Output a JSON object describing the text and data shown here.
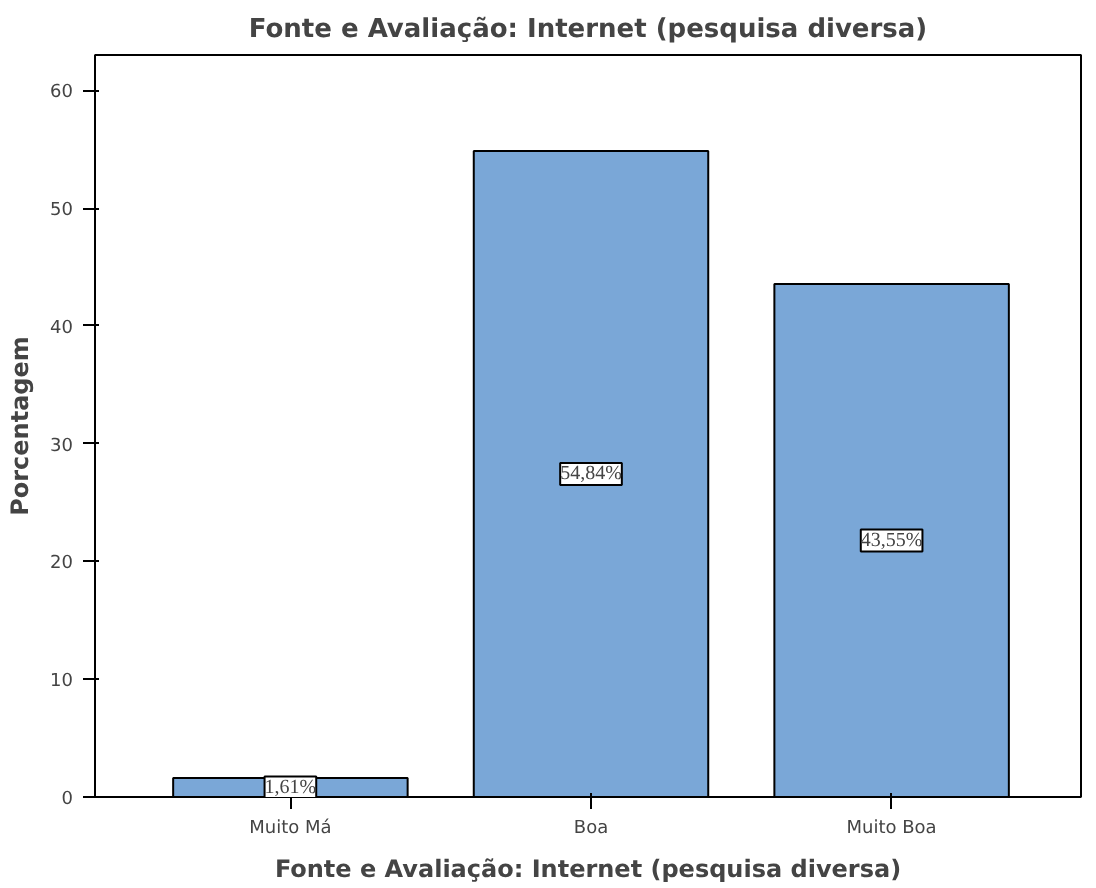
{
  "chart_data": {
    "type": "bar",
    "title": "Fonte e Avaliação: Internet (pesquisa diversa)",
    "xlabel": "Fonte e Avaliação: Internet (pesquisa diversa)",
    "ylabel": "Porcentagem",
    "categories": [
      "Muito Má",
      "Boa",
      "Muito Boa"
    ],
    "values": [
      1.61,
      54.84,
      43.55
    ],
    "value_labels": [
      "1,61%",
      "54,84%",
      "43,55%"
    ],
    "color": "#7aa7d7",
    "ylim": [
      0,
      63
    ],
    "yticks": [
      0,
      10,
      20,
      30,
      40,
      50,
      60
    ],
    "grid": false
  }
}
